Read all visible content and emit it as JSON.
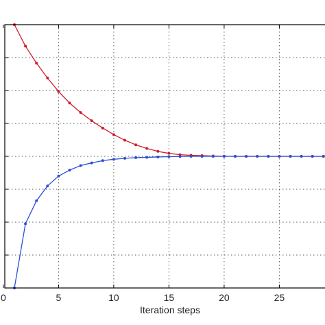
{
  "chart_data": {
    "type": "line",
    "title": "",
    "xlabel": "Iteration steps",
    "ylabel": "",
    "xlim": [
      0,
      29
    ],
    "ylim": [
      0,
      8
    ],
    "grid": true,
    "x_ticks": [
      0,
      5,
      10,
      15,
      20,
      25
    ],
    "x_tick_labels": [
      "0",
      "5",
      "10",
      "15",
      "20",
      "25"
    ],
    "y_ticks": [
      1,
      2,
      3,
      4,
      5,
      6,
      7,
      8
    ],
    "x": [
      1,
      2,
      3,
      4,
      5,
      6,
      7,
      8,
      9,
      10,
      11,
      12,
      13,
      14,
      15,
      16,
      17,
      18,
      19,
      20,
      21,
      22,
      23,
      24,
      25,
      26,
      27,
      28,
      29
    ],
    "series": [
      {
        "color": "#d01c2a",
        "values": [
          8.0,
          7.35,
          6.83,
          6.38,
          5.97,
          5.62,
          5.33,
          5.08,
          4.86,
          4.66,
          4.49,
          4.35,
          4.24,
          4.15,
          4.09,
          4.05,
          4.03,
          4.02,
          4.01,
          4.005,
          4.0,
          4.0,
          4.0,
          4.0,
          4.0,
          4.0,
          4.0,
          4.0,
          4.0
        ]
      },
      {
        "color": "#2a4fd6",
        "values": [
          0.0,
          1.95,
          2.65,
          3.1,
          3.4,
          3.58,
          3.72,
          3.8,
          3.87,
          3.91,
          3.94,
          3.96,
          3.97,
          3.98,
          3.99,
          3.995,
          4.0,
          4.0,
          4.0,
          4.0,
          4.0,
          4.0,
          4.0,
          4.0,
          4.0,
          4.0,
          4.0,
          4.0,
          4.0
        ]
      }
    ]
  }
}
